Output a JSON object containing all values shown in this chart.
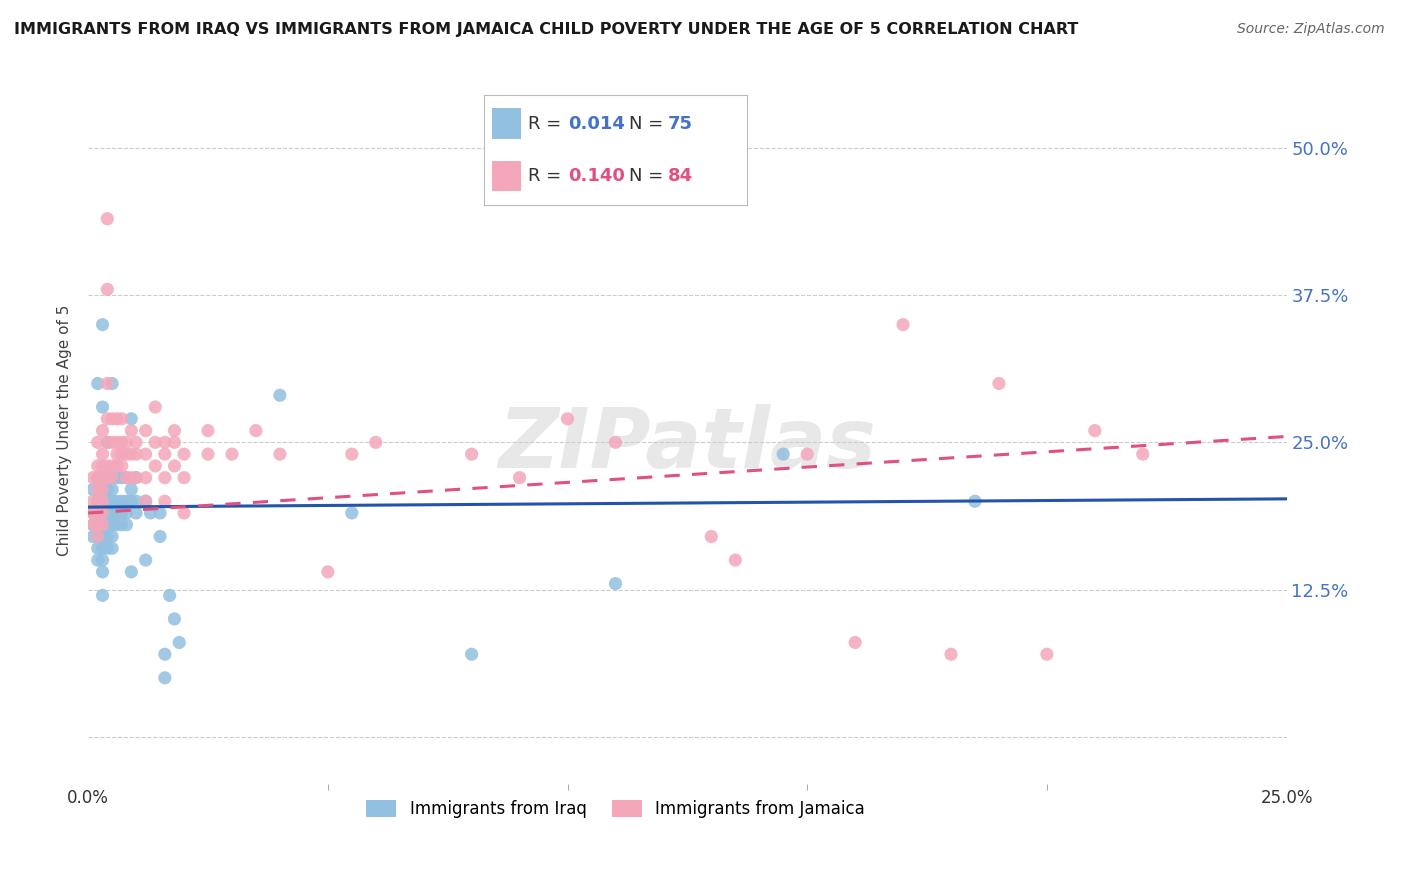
{
  "title": "IMMIGRANTS FROM IRAQ VS IMMIGRANTS FROM JAMAICA CHILD POVERTY UNDER THE AGE OF 5 CORRELATION CHART",
  "source": "Source: ZipAtlas.com",
  "ylabel": "Child Poverty Under the Age of 5",
  "ytick_values": [
    0.0,
    0.125,
    0.25,
    0.375,
    0.5
  ],
  "ytick_labels": [
    "",
    "12.5%",
    "25.0%",
    "37.5%",
    "50.0%"
  ],
  "xlim": [
    0.0,
    0.25
  ],
  "ylim": [
    -0.04,
    0.56
  ],
  "iraq_color": "#92c0e0",
  "jamaica_color": "#f4a7b9",
  "iraq_line_color": "#2255aa",
  "jamaica_line_color": "#e05080",
  "legend_iraq_R_val": "0.014",
  "legend_iraq_N_val": "75",
  "legend_jamaica_R_val": "0.140",
  "legend_jamaica_N_val": "84",
  "legend_R_color": "#4472c4",
  "legend_N_color": "#4472c4",
  "legend_jamaica_R_color": "#e05080",
  "legend_jamaica_N_color": "#e05080",
  "watermark": "ZIPatlas",
  "background_color": "#ffffff",
  "grid_color": "#cccccc",
  "title_color": "#1a1a1a",
  "right_tick_color": "#4472c4",
  "iraq_scatter": [
    [
      0.001,
      0.21
    ],
    [
      0.001,
      0.19
    ],
    [
      0.001,
      0.18
    ],
    [
      0.001,
      0.17
    ],
    [
      0.002,
      0.3
    ],
    [
      0.002,
      0.22
    ],
    [
      0.002,
      0.2
    ],
    [
      0.002,
      0.19
    ],
    [
      0.002,
      0.18
    ],
    [
      0.002,
      0.17
    ],
    [
      0.002,
      0.16
    ],
    [
      0.002,
      0.15
    ],
    [
      0.003,
      0.35
    ],
    [
      0.003,
      0.28
    ],
    [
      0.003,
      0.22
    ],
    [
      0.003,
      0.21
    ],
    [
      0.003,
      0.2
    ],
    [
      0.003,
      0.19
    ],
    [
      0.003,
      0.18
    ],
    [
      0.003,
      0.17
    ],
    [
      0.003,
      0.16
    ],
    [
      0.003,
      0.15
    ],
    [
      0.003,
      0.14
    ],
    [
      0.003,
      0.12
    ],
    [
      0.004,
      0.25
    ],
    [
      0.004,
      0.22
    ],
    [
      0.004,
      0.21
    ],
    [
      0.004,
      0.2
    ],
    [
      0.004,
      0.19
    ],
    [
      0.004,
      0.18
    ],
    [
      0.004,
      0.17
    ],
    [
      0.004,
      0.16
    ],
    [
      0.005,
      0.3
    ],
    [
      0.005,
      0.22
    ],
    [
      0.005,
      0.21
    ],
    [
      0.005,
      0.2
    ],
    [
      0.005,
      0.19
    ],
    [
      0.005,
      0.18
    ],
    [
      0.005,
      0.17
    ],
    [
      0.005,
      0.16
    ],
    [
      0.006,
      0.22
    ],
    [
      0.006,
      0.2
    ],
    [
      0.006,
      0.19
    ],
    [
      0.006,
      0.18
    ],
    [
      0.007,
      0.22
    ],
    [
      0.007,
      0.2
    ],
    [
      0.007,
      0.19
    ],
    [
      0.007,
      0.18
    ],
    [
      0.008,
      0.22
    ],
    [
      0.008,
      0.2
    ],
    [
      0.008,
      0.19
    ],
    [
      0.008,
      0.18
    ],
    [
      0.009,
      0.27
    ],
    [
      0.009,
      0.21
    ],
    [
      0.009,
      0.2
    ],
    [
      0.009,
      0.14
    ],
    [
      0.01,
      0.22
    ],
    [
      0.01,
      0.2
    ],
    [
      0.01,
      0.19
    ],
    [
      0.012,
      0.2
    ],
    [
      0.012,
      0.15
    ],
    [
      0.013,
      0.19
    ],
    [
      0.015,
      0.19
    ],
    [
      0.015,
      0.17
    ],
    [
      0.016,
      0.07
    ],
    [
      0.016,
      0.05
    ],
    [
      0.017,
      0.12
    ],
    [
      0.018,
      0.1
    ],
    [
      0.019,
      0.08
    ],
    [
      0.04,
      0.29
    ],
    [
      0.055,
      0.19
    ],
    [
      0.08,
      0.07
    ],
    [
      0.11,
      0.13
    ],
    [
      0.145,
      0.24
    ],
    [
      0.185,
      0.2
    ]
  ],
  "jamaica_scatter": [
    [
      0.001,
      0.22
    ],
    [
      0.001,
      0.2
    ],
    [
      0.001,
      0.19
    ],
    [
      0.001,
      0.18
    ],
    [
      0.002,
      0.25
    ],
    [
      0.002,
      0.23
    ],
    [
      0.002,
      0.22
    ],
    [
      0.002,
      0.21
    ],
    [
      0.002,
      0.2
    ],
    [
      0.002,
      0.19
    ],
    [
      0.002,
      0.18
    ],
    [
      0.002,
      0.17
    ],
    [
      0.003,
      0.26
    ],
    [
      0.003,
      0.24
    ],
    [
      0.003,
      0.23
    ],
    [
      0.003,
      0.22
    ],
    [
      0.003,
      0.21
    ],
    [
      0.003,
      0.2
    ],
    [
      0.003,
      0.19
    ],
    [
      0.003,
      0.18
    ],
    [
      0.004,
      0.44
    ],
    [
      0.004,
      0.38
    ],
    [
      0.004,
      0.3
    ],
    [
      0.004,
      0.27
    ],
    [
      0.004,
      0.25
    ],
    [
      0.004,
      0.23
    ],
    [
      0.004,
      0.22
    ],
    [
      0.005,
      0.27
    ],
    [
      0.005,
      0.25
    ],
    [
      0.005,
      0.23
    ],
    [
      0.005,
      0.22
    ],
    [
      0.006,
      0.27
    ],
    [
      0.006,
      0.25
    ],
    [
      0.006,
      0.24
    ],
    [
      0.006,
      0.23
    ],
    [
      0.007,
      0.27
    ],
    [
      0.007,
      0.25
    ],
    [
      0.007,
      0.24
    ],
    [
      0.007,
      0.23
    ],
    [
      0.008,
      0.25
    ],
    [
      0.008,
      0.24
    ],
    [
      0.008,
      0.22
    ],
    [
      0.009,
      0.26
    ],
    [
      0.009,
      0.24
    ],
    [
      0.009,
      0.22
    ],
    [
      0.01,
      0.25
    ],
    [
      0.01,
      0.24
    ],
    [
      0.01,
      0.22
    ],
    [
      0.012,
      0.26
    ],
    [
      0.012,
      0.24
    ],
    [
      0.012,
      0.22
    ],
    [
      0.012,
      0.2
    ],
    [
      0.014,
      0.28
    ],
    [
      0.014,
      0.25
    ],
    [
      0.014,
      0.23
    ],
    [
      0.016,
      0.25
    ],
    [
      0.016,
      0.24
    ],
    [
      0.016,
      0.22
    ],
    [
      0.016,
      0.2
    ],
    [
      0.018,
      0.26
    ],
    [
      0.018,
      0.25
    ],
    [
      0.018,
      0.23
    ],
    [
      0.02,
      0.24
    ],
    [
      0.02,
      0.22
    ],
    [
      0.02,
      0.19
    ],
    [
      0.025,
      0.26
    ],
    [
      0.025,
      0.24
    ],
    [
      0.03,
      0.24
    ],
    [
      0.035,
      0.26
    ],
    [
      0.04,
      0.24
    ],
    [
      0.05,
      0.14
    ],
    [
      0.055,
      0.24
    ],
    [
      0.06,
      0.25
    ],
    [
      0.08,
      0.24
    ],
    [
      0.09,
      0.22
    ],
    [
      0.1,
      0.27
    ],
    [
      0.11,
      0.25
    ],
    [
      0.13,
      0.17
    ],
    [
      0.135,
      0.15
    ],
    [
      0.15,
      0.24
    ],
    [
      0.16,
      0.08
    ],
    [
      0.17,
      0.35
    ],
    [
      0.18,
      0.07
    ],
    [
      0.19,
      0.3
    ],
    [
      0.2,
      0.07
    ],
    [
      0.21,
      0.26
    ],
    [
      0.22,
      0.24
    ]
  ],
  "iraq_trendline": [
    [
      0.0,
      0.195
    ],
    [
      0.25,
      0.202
    ]
  ],
  "jamaica_trendline": [
    [
      0.0,
      0.19
    ],
    [
      0.25,
      0.255
    ]
  ]
}
